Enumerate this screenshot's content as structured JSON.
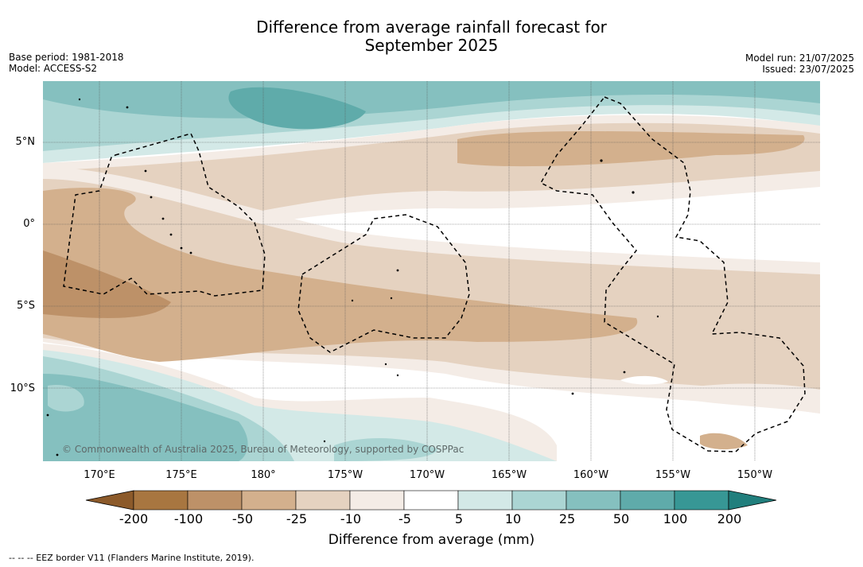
{
  "title_line1": "Difference from average rainfall forecast for",
  "title_line2": "September 2025",
  "base_period": "Base period: 1981-2018",
  "model": "Model: ACCESS-S2",
  "model_run": "Model run: 21/07/2025",
  "issued": "Issued: 23/07/2025",
  "copyright": "© Commonwealth of Australia 2025, Bureau of Meteorology, supported by COSPPac",
  "latitude_labels": [
    "5°N",
    "0°",
    "5°S",
    "10°S"
  ],
  "longitude_labels": [
    "170°E",
    "175°E",
    "180°",
    "175°W",
    "170°W",
    "165°W",
    "160°W",
    "155°W",
    "150°W"
  ],
  "colorbar": {
    "ticks": [
      "-200",
      "-100",
      "-50",
      "-25",
      "-10",
      "-5",
      "5",
      "10",
      "25",
      "50",
      "100",
      "200"
    ],
    "colors": [
      "#8c5a2a",
      "#a87640",
      "#bd9168",
      "#d3b08d",
      "#e5d2c0",
      "#f4ece6",
      "#ffffff",
      "#d3e9e7",
      "#abd5d3",
      "#85c0bf",
      "#5fabaa",
      "#379795",
      "#217f7d"
    ],
    "title": "Difference from average (mm)"
  },
  "footnote": "--  --  -- EEZ border V11 (Flanders Marine Institute, 2019)."
}
